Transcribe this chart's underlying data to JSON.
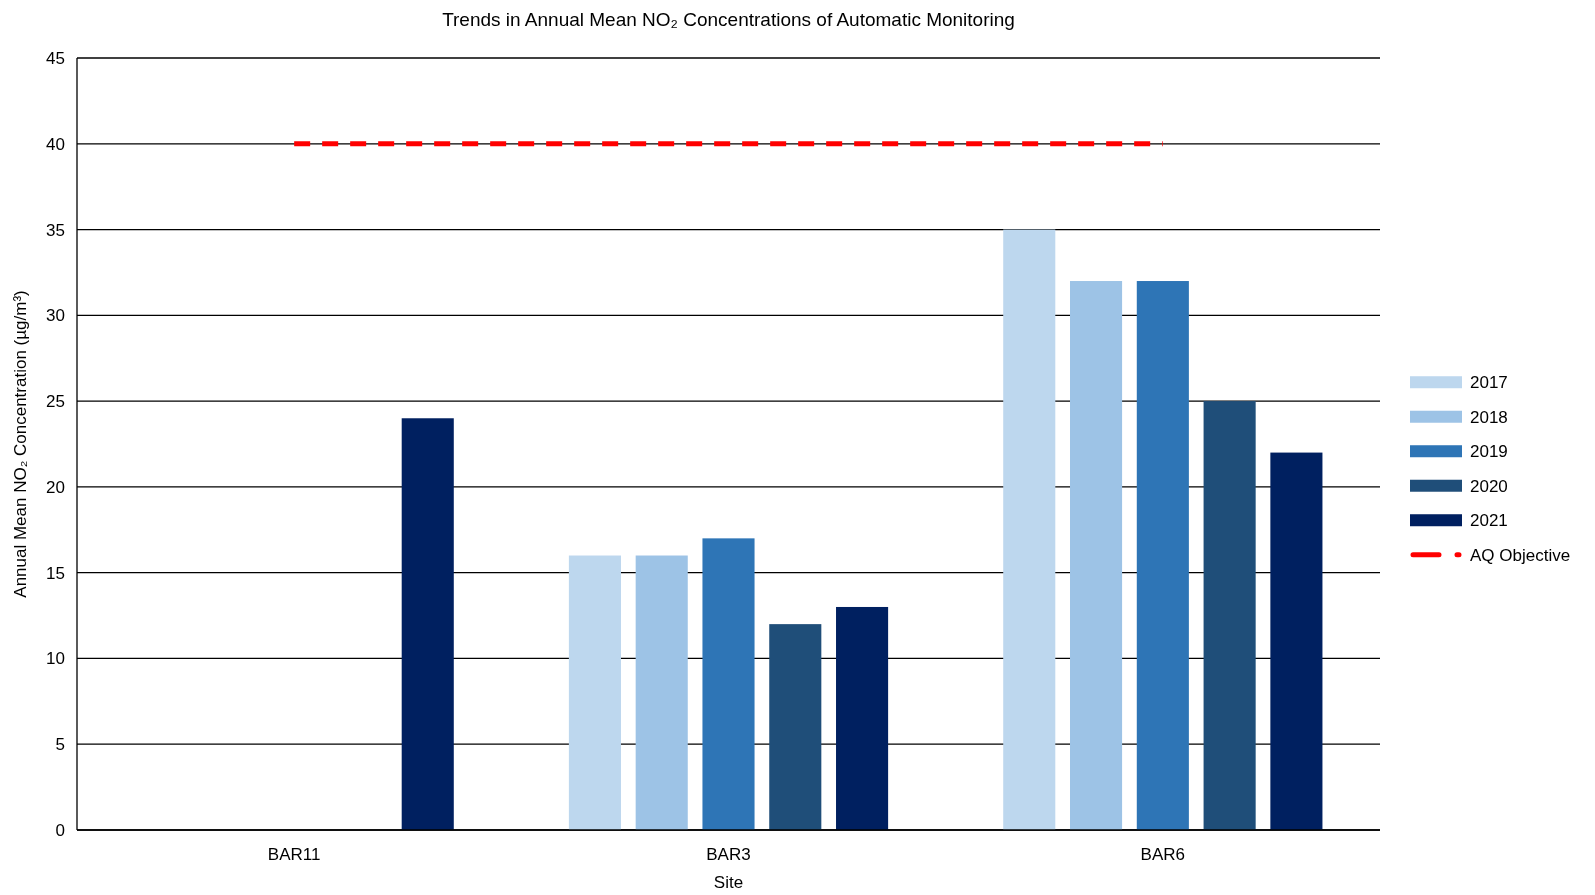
{
  "chart_data": {
    "type": "bar",
    "title": "Trends in Annual Mean NO₂ Concentrations of Automatic Monitoring",
    "xlabel": "Site",
    "ylabel": "Annual Mean NO₂ Concentration (µg/m³)",
    "categories": [
      "BAR11",
      "BAR3",
      "BAR6"
    ],
    "series": [
      {
        "name": "2017",
        "color": "#bdd7ee",
        "values": [
          null,
          16,
          35
        ]
      },
      {
        "name": "2018",
        "color": "#9dc3e6",
        "values": [
          null,
          16,
          32
        ]
      },
      {
        "name": "2019",
        "color": "#2e75b6",
        "values": [
          null,
          17,
          32
        ]
      },
      {
        "name": "2020",
        "color": "#1f4e79",
        "values": [
          null,
          12,
          25
        ]
      },
      {
        "name": "2021",
        "color": "#002060",
        "values": [
          24,
          13,
          22
        ]
      },
      {
        "name": "AQ Objective",
        "type": "line",
        "color": "#ff0000",
        "line_style": "dashed",
        "values": [
          40,
          40,
          40
        ]
      }
    ],
    "ylim": [
      0,
      45
    ],
    "yticks": [
      0,
      5,
      10,
      15,
      20,
      25,
      30,
      35,
      40,
      45
    ],
    "grid": "y",
    "legend": "right"
  }
}
